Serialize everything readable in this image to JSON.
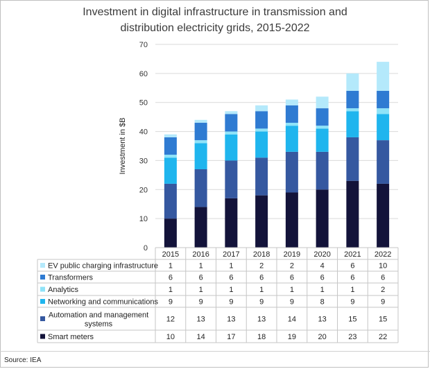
{
  "title_line1": "Investment in digital infrastructure in transmission and",
  "title_line2": "distribution electricity grids, 2015-2022",
  "source": "Source: IEA",
  "chart_data": {
    "type": "bar",
    "stacked": true,
    "categories": [
      "2015",
      "2016",
      "2017",
      "2018",
      "2019",
      "2020",
      "2021",
      "2022"
    ],
    "ylabel": "Investment in $B",
    "ylim": [
      0,
      70
    ],
    "yticks": [
      0,
      10,
      20,
      30,
      40,
      50,
      60,
      70
    ],
    "grid": true,
    "legend": "data-table-below",
    "series": [
      {
        "name": "Smart meters",
        "color": "#13133a",
        "values": [
          10,
          14,
          17,
          18,
          19,
          20,
          23,
          22
        ]
      },
      {
        "name": "Automation and management systems",
        "color": "#3558a0",
        "values": [
          12,
          13,
          13,
          13,
          14,
          13,
          15,
          15
        ]
      },
      {
        "name": "Networking and communications",
        "color": "#1fb5ee",
        "values": [
          9,
          9,
          9,
          9,
          9,
          8,
          9,
          9
        ]
      },
      {
        "name": "Analytics",
        "color": "#8fe3f8",
        "values": [
          1,
          1,
          1,
          1,
          1,
          1,
          1,
          2
        ]
      },
      {
        "name": "Transformers",
        "color": "#2f7bd2",
        "values": [
          6,
          6,
          6,
          6,
          6,
          6,
          6,
          6
        ]
      },
      {
        "name": "EV public charging infrastructure",
        "color": "#b4e9fb",
        "values": [
          1,
          1,
          1,
          2,
          2,
          4,
          6,
          10
        ]
      }
    ]
  }
}
